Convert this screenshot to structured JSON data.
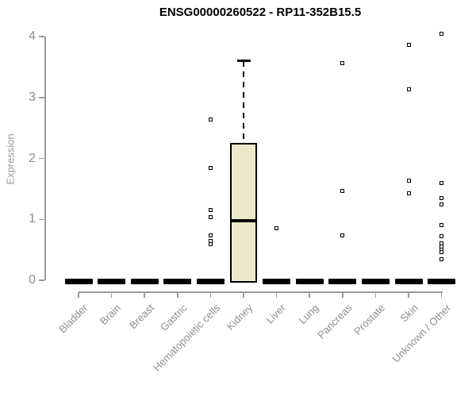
{
  "page": {
    "title": "ENSG00000260522 - RP11-352B15.5"
  },
  "chart_data": {
    "type": "boxplot",
    "title": "ENSG00000260522 - RP11-352B15.5",
    "xlabel": "",
    "ylabel": "Expression",
    "ylim": [
      0,
      4
    ],
    "yticks": [
      0,
      1,
      2,
      3,
      4
    ],
    "grid": false,
    "legend": "none",
    "box_fill_color": "#ECE8CC",
    "box_stroke_color": "#000000",
    "axis_color": "#9B9B9B",
    "tick_label_color": "#8F8F8F",
    "title_color": "#000000",
    "categories": [
      "Bladder",
      "Brain",
      "Breast",
      "Gastric",
      "Hematopoietic cells",
      "Kidney",
      "Liver",
      "Lung",
      "Pancreas",
      "Prostate",
      "Skin",
      "Unknown / Other"
    ],
    "series": [
      {
        "name": "Bladder",
        "q1": 0,
        "median": 0,
        "q3": 0,
        "whisker_low": 0,
        "whisker_high": 0,
        "outliers": []
      },
      {
        "name": "Brain",
        "q1": 0,
        "median": 0,
        "q3": 0,
        "whisker_low": 0,
        "whisker_high": 0,
        "outliers": []
      },
      {
        "name": "Breast",
        "q1": 0,
        "median": 0,
        "q3": 0,
        "whisker_low": 0,
        "whisker_high": 0,
        "outliers": []
      },
      {
        "name": "Gastric",
        "q1": 0,
        "median": 0,
        "q3": 0,
        "whisker_low": 0,
        "whisker_high": 0,
        "outliers": []
      },
      {
        "name": "Hematopoietic cells",
        "q1": 0,
        "median": 0,
        "q3": 0,
        "whisker_low": 0,
        "whisker_high": 0,
        "outliers": [
          2.64,
          1.85,
          1.15,
          1.03,
          0.73,
          0.65,
          0.59
        ]
      },
      {
        "name": "Kidney",
        "q1": 0,
        "median": 0.98,
        "q3": 2.25,
        "whisker_low": 0,
        "whisker_high": 3.6,
        "outliers": []
      },
      {
        "name": "Liver",
        "q1": 0,
        "median": 0,
        "q3": 0,
        "whisker_low": 0,
        "whisker_high": 0,
        "outliers": [
          0.85
        ]
      },
      {
        "name": "Lung",
        "q1": 0,
        "median": 0,
        "q3": 0,
        "whisker_low": 0,
        "whisker_high": 0,
        "outliers": []
      },
      {
        "name": "Pancreas",
        "q1": 0,
        "median": 0,
        "q3": 0,
        "whisker_low": 0,
        "whisker_high": 0,
        "outliers": [
          3.57,
          1.46,
          0.74
        ]
      },
      {
        "name": "Prostate",
        "q1": 0,
        "median": 0,
        "q3": 0,
        "whisker_low": 0,
        "whisker_high": 0,
        "outliers": []
      },
      {
        "name": "Skin",
        "q1": 0,
        "median": 0,
        "q3": 0,
        "whisker_low": 0,
        "whisker_high": 0,
        "outliers": [
          3.86,
          3.14,
          1.63,
          1.43
        ]
      },
      {
        "name": "Unknown / Other",
        "q1": 0,
        "median": 0,
        "q3": 0,
        "whisker_low": 0,
        "whisker_high": 0,
        "outliers": [
          4.05,
          1.59,
          1.35,
          1.24,
          0.91,
          0.72,
          0.61,
          0.56,
          0.5,
          0.46,
          0.34
        ]
      }
    ]
  }
}
